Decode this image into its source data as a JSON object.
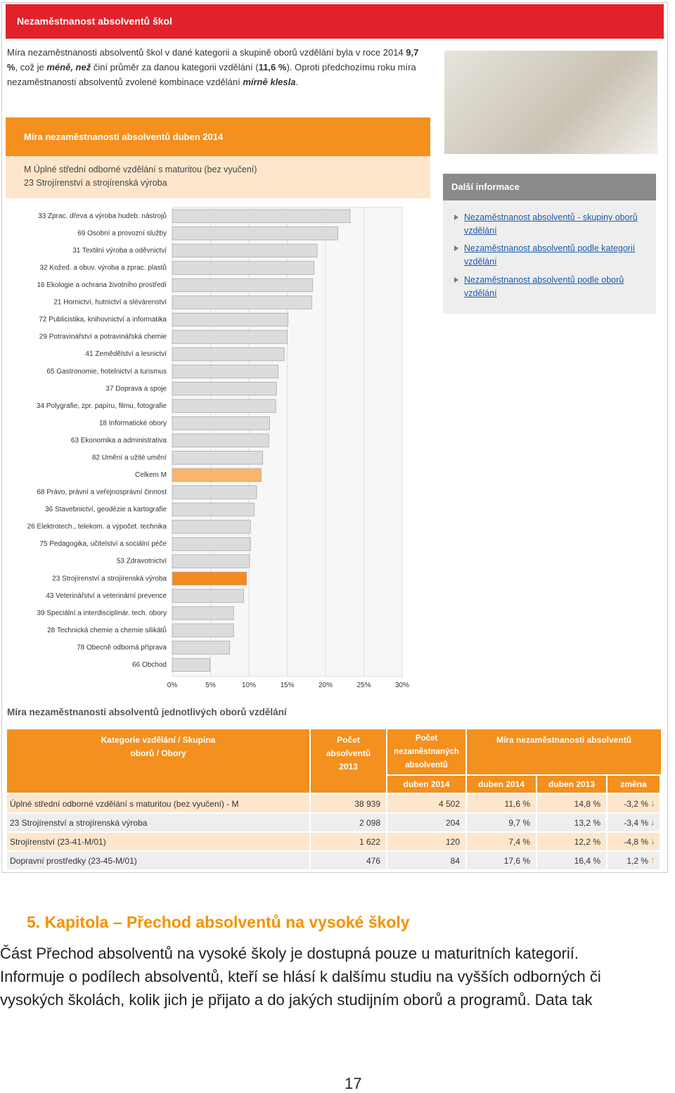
{
  "header": {
    "title": "Nezaměstnanost absolventů škol",
    "intro": [
      "Míra nezaměstnanosti absolventů škol v dané kategorii a skupině oborů vzdělání byla v roce 2014 ",
      "9,7 %",
      ", což je ",
      "méně, než",
      " činí průměr za danou kategorii vzdělání (",
      "11,6 %",
      "). Oproti předchozímu roku míra nezaměstnanosti absolventů zvolené kombinace vzdělání ",
      "mírně klesla",
      "."
    ]
  },
  "panel": {
    "title": "Míra nezaměstnanosti absolventů duben 2014",
    "lines": [
      "M Úplné střední odborné vzdělání s maturitou (bez vyučení)",
      "23 Strojírenství a strojírenská výroba"
    ]
  },
  "sidebar": {
    "title": "Další informace",
    "links": [
      "Nezaměstnanost absolventů - skupiny oborů vzdělání",
      "Nezaměstnanost absolventů podle kategorií vzdělání",
      "Nezaměstnanost absolventů podle oborů vzdělání"
    ]
  },
  "chart_data": {
    "type": "hbar",
    "categories": [
      "33 Zprac. dřeva a výroba hudeb. nástrojů",
      "69 Osobní a provozní služby",
      "31 Textilní výroba a oděvnictví",
      "32 Kožed. a obuv. výroba a zprac. plastů",
      "16 Ekologie a ochrana životního prostředí",
      "21 Hornictví, hutnictví a slévárenství",
      "72 Publicistika, knihovnictví a informatika",
      "29 Potravinářství a potravinářská chemie",
      "41 Zemědělství a lesnictví",
      "65 Gastronomie, hotelnictví a turismus",
      "37 Doprava a spoje",
      "34 Polygrafie, zpr. papíru, filmu, fotografie",
      "18 Informatické obory",
      "63 Ekonomika a administrativa",
      "82 Umění a užité umění",
      "Celkem M",
      "68 Právo, právní a veřejnosprávní činnost",
      "36 Stavebnictví, geodézie a kartografie",
      "26 Elektrotech., telekom. a výpočet. technika",
      "75 Pedagogika, učitelství a sociální péče",
      "53 Zdravotnictví",
      "23 Strojírenství a strojírenská výroba",
      "43 Veterinářství a veterinární prevence",
      "39 Speciální a interdisciplinár. tech. obory",
      "28 Technická chemie a chemie silikátů",
      "78 Obecně odborná příprava",
      "66 Obchod"
    ],
    "values": [
      23.2,
      21.6,
      18.9,
      18.5,
      18.3,
      18.2,
      15.1,
      15.0,
      14.6,
      13.8,
      13.6,
      13.5,
      12.7,
      12.6,
      11.8,
      11.6,
      11.0,
      10.7,
      10.2,
      10.2,
      10.1,
      9.7,
      9.3,
      8.0,
      8.0,
      7.5,
      4.9
    ],
    "colors": [
      "#dcdcdc",
      "#dcdcdc",
      "#dcdcdc",
      "#dcdcdc",
      "#dcdcdc",
      "#dcdcdc",
      "#dcdcdc",
      "#dcdcdc",
      "#dcdcdc",
      "#dcdcdc",
      "#dcdcdc",
      "#dcdcdc",
      "#dcdcdc",
      "#dcdcdc",
      "#dcdcdc",
      "#fbb46a",
      "#dcdcdc",
      "#dcdcdc",
      "#dcdcdc",
      "#dcdcdc",
      "#dcdcdc",
      "#f58a1f",
      "#dcdcdc",
      "#dcdcdc",
      "#dcdcdc",
      "#dcdcdc",
      "#dcdcdc"
    ],
    "xlim": [
      0,
      30
    ],
    "xticks": [
      {
        "value": 0,
        "label": "0%"
      },
      {
        "value": 5,
        "label": "5%"
      },
      {
        "value": 10,
        "label": "10%"
      },
      {
        "value": 15,
        "label": "15%"
      },
      {
        "value": 20,
        "label": "20%"
      },
      {
        "value": 25,
        "label": "25%"
      },
      {
        "value": 30,
        "label": "30%"
      }
    ],
    "grid": true
  },
  "table": {
    "title": "Míra nezaměstnanosti absolventů jednotlivých oborů vzdělání",
    "head": [
      "Kategorie vzdělání / Skupina oborů / Obory",
      "Počet absolventů 2013",
      "Počet nezaměstnaných absolventů",
      "Míra nezaměstnanosti absolventů"
    ],
    "subhead": [
      "duben 2014",
      "duben 2014",
      "duben 2013",
      "změna"
    ],
    "rows": [
      [
        "Úplné střední odborné vzdělání s maturitou (bez vyučení) - M",
        "38 939",
        "4 502",
        "11,6 %",
        "14,8 %",
        "-3,2 %"
      ],
      [
        "23 Strojírenství a strojírenská výroba",
        "2 098",
        "204",
        "9,7 %",
        "13,2 %",
        "-3,4 %"
      ],
      [
        "Strojírenství (23-41-M/01)",
        "1 622",
        "120",
        "7,4 %",
        "12,2 %",
        "-4,8 %"
      ],
      [
        "Dopravní prostředky (23-45-M/01)",
        "476",
        "84",
        "17,6 %",
        "16,4 %",
        "1,2 %"
      ]
    ]
  },
  "section": {
    "heading": "5.  Kapitola – Přechod absolventů na vysoké školy",
    "lines": [
      "Část Přechod absolventů na vysoké školy je dostupná pouze u maturitních kategorií.",
      "Informuje o podílech absolventů, kteří se hlásí k dalšímu studiu na vyšších odborných či",
      "vysokých školách, kolik jich je přijato a do jakých studijním oborů a programů. Data tak"
    ]
  },
  "footer": {
    "page": "17"
  }
}
